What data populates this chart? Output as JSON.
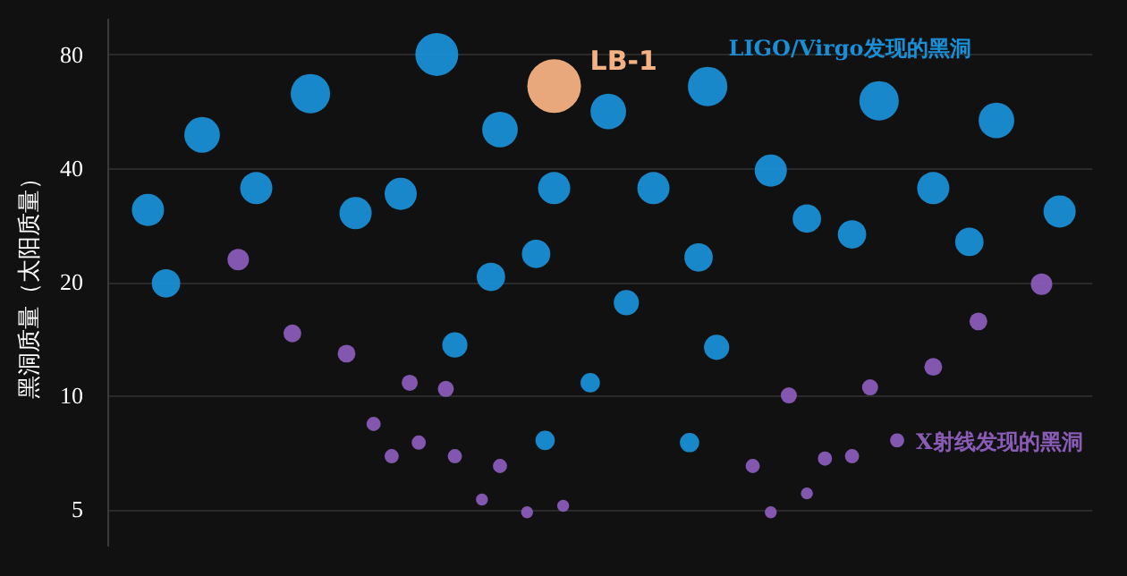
{
  "chart_data": {
    "type": "bubble",
    "ylabel": "黑洞质量（太阳质量）",
    "log": "y",
    "ylim": [
      4,
      100
    ],
    "yticks": [
      5,
      10,
      20,
      40,
      80
    ],
    "grid": "y",
    "legend": false,
    "tick_labels": "y",
    "marker": "circle",
    "categories": [
      null,
      null,
      null,
      null,
      null,
      null,
      null,
      null,
      null,
      null,
      null,
      null,
      null,
      null,
      null,
      null,
      null,
      null,
      null,
      null,
      null,
      null,
      null,
      null,
      null,
      null,
      null,
      null,
      null,
      null,
      null,
      null,
      null,
      null,
      null,
      null,
      null,
      null,
      null,
      null,
      null,
      null,
      null,
      null,
      null,
      null,
      null,
      null,
      null,
      null,
      null,
      null,
      null,
      null,
      null,
      null,
      null,
      null,
      null,
      null,
      null,
      null,
      null,
      null,
      null,
      null,
      null,
      null,
      null,
      null,
      null,
      null,
      null,
      null,
      null,
      null,
      null,
      null,
      null,
      null,
      null,
      null,
      null,
      null,
      null,
      null,
      null,
      null,
      null,
      null,
      null,
      null,
      null,
      null,
      null,
      null,
      null,
      null,
      null,
      null,
      null,
      null,
      null,
      null,
      null,
      null,
      null,
      null,
      null
    ],
    "series": [
      {
        "name": "LIGO/Virgo发现的黑洞",
        "color": "#1a8fd6",
        "values": [
          null,
          null,
          null,
          null,
          31.0,
          null,
          19.8,
          null,
          null,
          null,
          49,
          null,
          null,
          null,
          null,
          null,
          35.4,
          null,
          null,
          null,
          null,
          null,
          63,
          null,
          null,
          null,
          null,
          30.4,
          null,
          null,
          null,
          null,
          34.2,
          null,
          null,
          null,
          80,
          null,
          13.6,
          null,
          null,
          null,
          20.6,
          50.6,
          null,
          null,
          null,
          23.7,
          7.6,
          35.4,
          null,
          null,
          null,
          10.8,
          null,
          56.5,
          null,
          17.6,
          null,
          null,
          35.4,
          null,
          null,
          null,
          7.5,
          23.2,
          65.8,
          13.4,
          null,
          null,
          null,
          null,
          null,
          39.4,
          null,
          null,
          null,
          29.4,
          null,
          null,
          null,
          null,
          26.7,
          null,
          null,
          60.3,
          null,
          null,
          null,
          null,
          null,
          35.4,
          null,
          null,
          null,
          25.5,
          null,
          null,
          53.5,
          null,
          null,
          null,
          null,
          null,
          null,
          30.7,
          null,
          null,
          null
        ],
        "sizes": [
          null,
          null,
          null,
          null,
          0.36,
          null,
          0.28,
          null,
          null,
          null,
          0.44,
          null,
          null,
          null,
          null,
          null,
          0.36,
          null,
          null,
          null,
          null,
          null,
          0.54,
          null,
          null,
          null,
          null,
          0.36,
          null,
          null,
          null,
          null,
          0.36,
          null,
          null,
          null,
          0.64,
          null,
          0.22,
          null,
          null,
          null,
          0.28,
          0.44,
          null,
          null,
          null,
          0.28,
          0.13,
          0.36,
          null,
          null,
          null,
          0.13,
          null,
          0.44,
          null,
          0.22,
          null,
          null,
          0.36,
          null,
          null,
          null,
          0.13,
          0.28,
          0.54,
          0.22,
          null,
          null,
          null,
          null,
          null,
          0.36,
          null,
          null,
          null,
          0.28,
          null,
          null,
          null,
          null,
          0.28,
          null,
          null,
          0.54,
          null,
          null,
          null,
          null,
          null,
          0.36,
          null,
          null,
          null,
          0.28,
          null,
          null,
          0.44,
          null,
          null,
          null,
          null,
          null,
          null,
          0.36,
          null,
          null,
          null
        ]
      },
      {
        "name": "X射线发现的黑洞",
        "color": "#8a5cb8",
        "values": [
          null,
          null,
          null,
          null,
          null,
          null,
          null,
          null,
          null,
          null,
          null,
          null,
          null,
          null,
          22.9,
          null,
          null,
          null,
          null,
          null,
          14.6,
          null,
          null,
          null,
          null,
          null,
          12.9,
          null,
          null,
          8.4,
          null,
          6.9,
          null,
          10.8,
          7.5,
          null,
          null,
          10.4,
          6.9,
          null,
          null,
          5.3,
          null,
          6.5,
          null,
          null,
          4.9,
          null,
          null,
          null,
          5.1,
          null,
          null,
          null,
          null,
          null,
          null,
          null,
          null,
          null,
          null,
          null,
          null,
          null,
          null,
          null,
          null,
          null,
          null,
          null,
          null,
          6.5,
          null,
          4.9,
          null,
          10.0,
          null,
          5.5,
          null,
          6.8,
          null,
          null,
          6.9,
          null,
          10.5,
          null,
          null,
          7.6,
          null,
          null,
          null,
          11.9,
          null,
          null,
          null,
          null,
          15.7,
          null,
          null,
          null,
          null,
          null,
          null,
          19.7,
          null,
          null,
          null,
          null,
          null
        ],
        "sizes": [
          null,
          null,
          null,
          null,
          null,
          null,
          null,
          null,
          null,
          null,
          null,
          null,
          null,
          null,
          0.16,
          null,
          null,
          null,
          null,
          null,
          0.11,
          null,
          null,
          null,
          null,
          null,
          0.11,
          null,
          null,
          0.07,
          null,
          0.07,
          null,
          0.09,
          0.07,
          null,
          null,
          0.09,
          0.07,
          null,
          null,
          0.05,
          null,
          0.07,
          null,
          null,
          0.05,
          null,
          null,
          null,
          0.05,
          null,
          null,
          null,
          null,
          null,
          null,
          null,
          null,
          null,
          null,
          null,
          null,
          null,
          null,
          null,
          null,
          null,
          null,
          null,
          null,
          0.07,
          null,
          0.05,
          null,
          0.09,
          null,
          0.05,
          null,
          0.07,
          null,
          null,
          0.07,
          null,
          0.09,
          null,
          null,
          0.07,
          null,
          null,
          null,
          0.11,
          null,
          null,
          null,
          null,
          0.11,
          null,
          null,
          null,
          null,
          null,
          null,
          0.16,
          null,
          null,
          null,
          null,
          null
        ]
      },
      {
        "name": "LB-1",
        "color": "#f4b183",
        "values": [
          null,
          null,
          null,
          null,
          null,
          null,
          null,
          null,
          null,
          null,
          null,
          null,
          null,
          null,
          null,
          null,
          null,
          null,
          null,
          null,
          null,
          null,
          null,
          null,
          null,
          null,
          null,
          null,
          null,
          null,
          null,
          null,
          null,
          null,
          null,
          null,
          null,
          null,
          null,
          null,
          null,
          null,
          null,
          null,
          null,
          null,
          null,
          null,
          null,
          66,
          null,
          null,
          null,
          null,
          null,
          null,
          null,
          null,
          null,
          null,
          null,
          null,
          null,
          null,
          null,
          null,
          null,
          null,
          null,
          null,
          null,
          null,
          null,
          null,
          null,
          null,
          null,
          null,
          null,
          null,
          null,
          null,
          null,
          null,
          null,
          null,
          null,
          null,
          null,
          null,
          null,
          null,
          null,
          null,
          null,
          null,
          null,
          null,
          null,
          null,
          null,
          null,
          null,
          null,
          null,
          null,
          null,
          null,
          null
        ],
        "sizes": [
          null,
          null,
          null,
          null,
          null,
          null,
          null,
          null,
          null,
          null,
          null,
          null,
          null,
          null,
          null,
          null,
          null,
          null,
          null,
          null,
          null,
          null,
          null,
          null,
          null,
          null,
          null,
          null,
          null,
          null,
          null,
          null,
          null,
          null,
          null,
          null,
          null,
          null,
          null,
          null,
          null,
          null,
          null,
          null,
          null,
          null,
          null,
          null,
          null,
          1,
          null,
          null,
          null,
          null,
          null,
          null,
          null,
          null,
          null,
          null,
          null,
          null,
          null,
          null,
          null,
          null,
          null,
          null,
          null,
          null,
          null,
          null,
          null,
          null,
          null,
          null,
          null,
          null,
          null,
          null,
          null,
          null,
          null,
          null,
          null,
          null,
          null,
          null,
          null,
          null,
          null,
          null,
          null,
          null,
          null,
          null,
          null,
          null,
          null,
          null,
          null,
          null,
          null,
          null,
          null,
          null,
          null,
          null,
          null
        ]
      }
    ]
  }
}
